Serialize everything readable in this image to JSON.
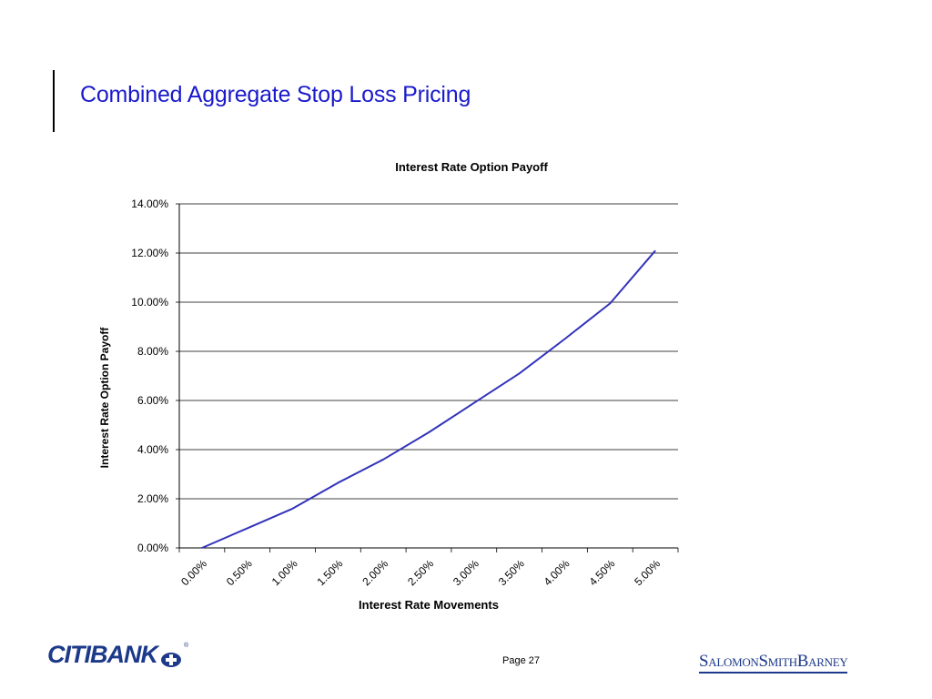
{
  "slide": {
    "title": "Combined Aggregate Stop Loss Pricing",
    "page_label": "Page 27"
  },
  "logos": {
    "left_text": "CITIBANK",
    "left_registered": "®",
    "right_text": "SalomonSmithBarney"
  },
  "colors": {
    "title_blue": "#1a1acc",
    "series_line": "#3333bb",
    "logo_blue": "#1d3a8a",
    "gridline": "#000000"
  },
  "chart_data": {
    "type": "line",
    "title": "Interest Rate Option Payoff",
    "xlabel": "Interest Rate Movements",
    "ylabel": "Interest Rate Option Payoff",
    "x_tick_labels": [
      "0.00%",
      "0.50%",
      "1.00%",
      "1.50%",
      "2.00%",
      "2.50%",
      "3.00%",
      "3.50%",
      "4.00%",
      "4.50%",
      "5.00%"
    ],
    "y_tick_labels": [
      "0.00%",
      "2.00%",
      "4.00%",
      "6.00%",
      "8.00%",
      "10.00%",
      "12.00%",
      "14.00%"
    ],
    "ylim": [
      0,
      14
    ],
    "xlim": [
      -0.25,
      5.25
    ],
    "grid": "horizontal",
    "legend": "none",
    "series": [
      {
        "x": [
          0.0,
          0.5,
          1.0,
          1.5,
          2.0,
          2.5,
          3.0,
          3.5,
          4.0,
          4.5,
          5.0
        ],
        "y": [
          0.0,
          0.8,
          1.6,
          2.65,
          3.6,
          4.7,
          5.9,
          7.1,
          8.5,
          9.95,
          12.1
        ]
      }
    ]
  }
}
